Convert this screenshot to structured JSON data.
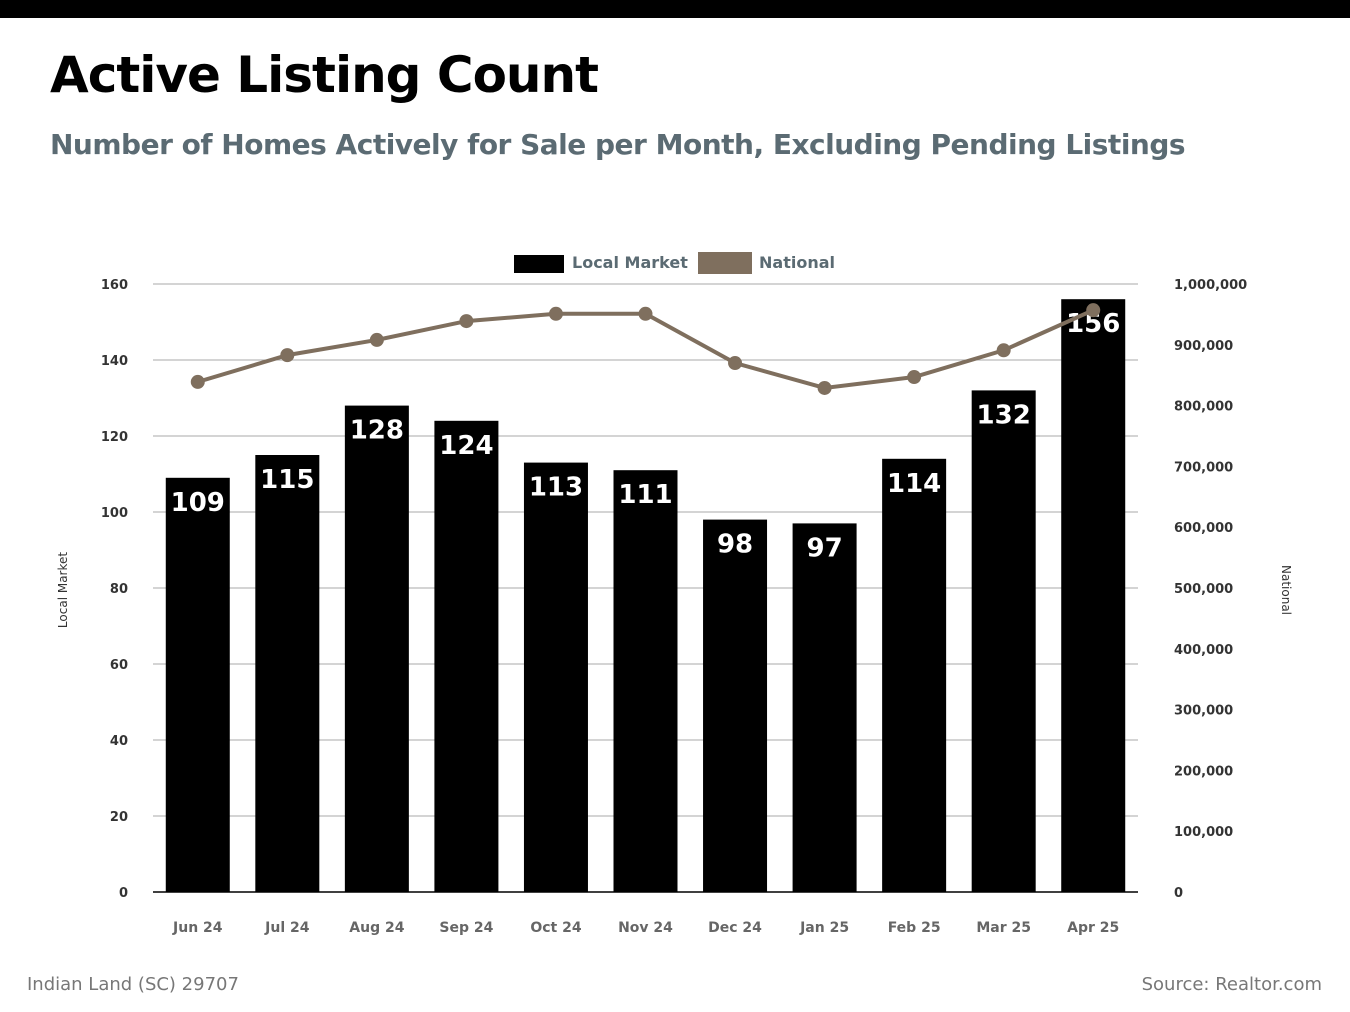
{
  "header": {
    "title": "Active Listing Count",
    "subtitle": "Number of Homes Actively for Sale per Month, Excluding Pending Listings"
  },
  "footer": {
    "location": "Indian Land (SC) 29707",
    "source": "Source: Realtor.com"
  },
  "colors": {
    "local": "#000000",
    "national": "#7f6f5e",
    "label": "#5b6b73",
    "grid": "#999999"
  },
  "chart_data": {
    "type": "bar",
    "categories": [
      "Jun 24",
      "Jul 24",
      "Aug 24",
      "Sep 24",
      "Oct 24",
      "Nov 24",
      "Dec 24",
      "Jan 25",
      "Feb 25",
      "Mar 25",
      "Apr 25"
    ],
    "series": [
      {
        "name": "Local Market",
        "type": "bar",
        "axis": "left",
        "values": [
          109,
          115,
          128,
          124,
          113,
          111,
          98,
          97,
          114,
          132,
          156
        ]
      },
      {
        "name": "National",
        "type": "line",
        "axis": "right",
        "values": [
          839000,
          883000,
          908000,
          939000,
          951000,
          951000,
          870000,
          829000,
          847000,
          891000,
          957000
        ]
      }
    ],
    "ylabel": "Local Market",
    "y2label": "National",
    "ylim": [
      0,
      160
    ],
    "yticks": [
      0,
      20,
      40,
      60,
      80,
      100,
      120,
      140,
      160
    ],
    "y2lim": [
      0,
      1000000
    ],
    "y2ticks": [
      "0",
      "100,000",
      "200,000",
      "300,000",
      "400,000",
      "500,000",
      "600,000",
      "700,000",
      "800,000",
      "900,000",
      "1,000,000"
    ],
    "legend": "top-center",
    "grid": true
  }
}
